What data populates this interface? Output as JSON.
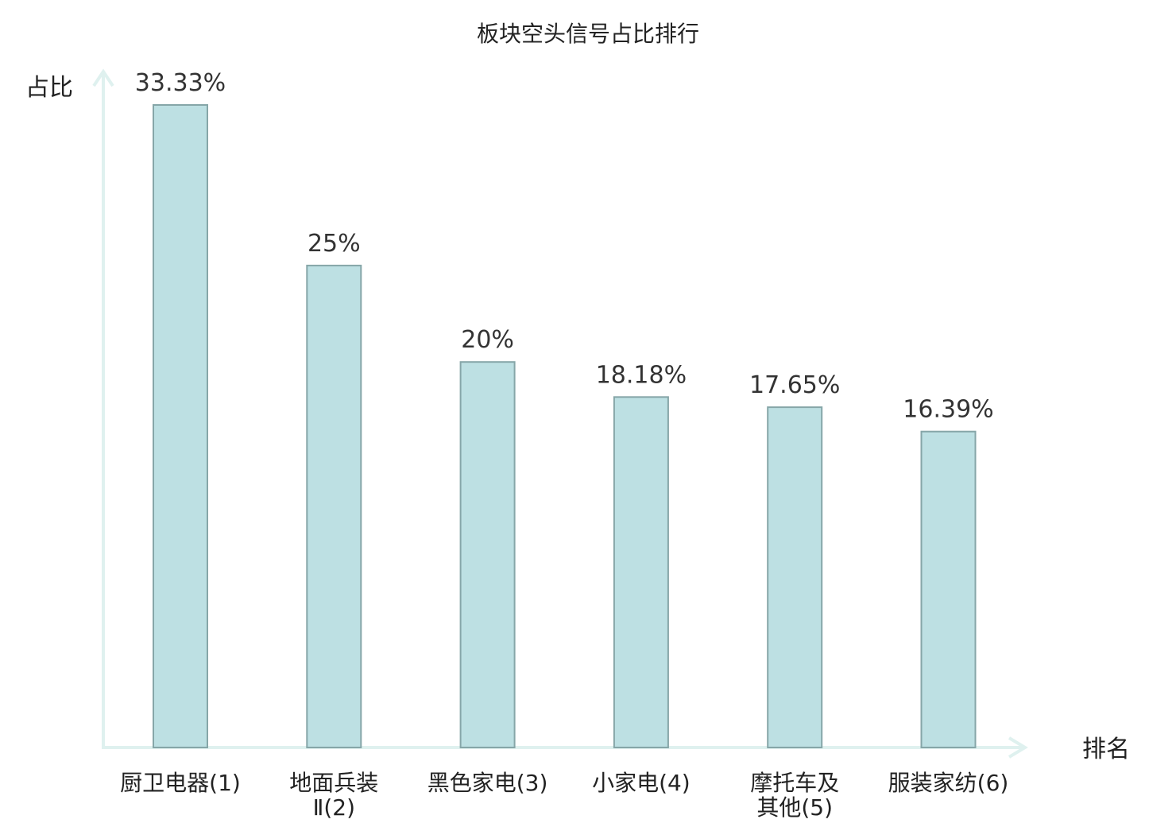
{
  "chart_data": {
    "type": "bar",
    "title": "板块空头信号占比排行",
    "ylabel": "占比",
    "xlabel": "排名",
    "ylim": [
      0,
      35
    ],
    "grid": false,
    "legend": "none",
    "categories": [
      "厨卫电器(1)",
      "地面兵装Ⅱ(2)",
      "黑色家电(3)",
      "小家电(4)",
      "摩托车及其他(5)",
      "服装家纺(6)"
    ],
    "category_lines": [
      [
        "厨卫电器(1)"
      ],
      [
        "地面兵装",
        "Ⅱ(2)"
      ],
      [
        "黑色家电(3)"
      ],
      [
        "小家电(4)"
      ],
      [
        "摩托车及",
        "其他(5)"
      ],
      [
        "服装家纺(6)"
      ]
    ],
    "values": [
      33.33,
      25,
      20,
      18.18,
      17.65,
      16.39
    ],
    "value_labels": [
      "33.33%",
      "25%",
      "20%",
      "18.18%",
      "17.65%",
      "16.39%"
    ],
    "highlight_index": 5
  },
  "colors": {
    "bar_fill": "#bde0e3",
    "bar_stroke": "#86a6a8",
    "axis": "#dff1ef",
    "text": "#222222",
    "value_text": "#333333",
    "highlight": "#e0150f"
  }
}
